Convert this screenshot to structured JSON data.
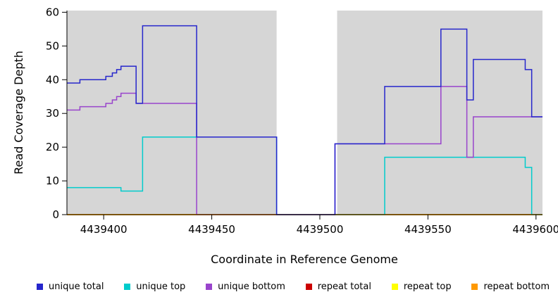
{
  "chart_data": {
    "type": "line",
    "title": "",
    "xlabel": "Coordinate in Reference Genome",
    "ylabel": "Read Coverage Depth",
    "xlim": [
      4439383,
      4439603
    ],
    "ylim": [
      0,
      60.5
    ],
    "x_ticks": [
      4439400,
      4439450,
      4439500,
      4439550,
      4439600
    ],
    "y_ticks": [
      0,
      10,
      20,
      30,
      40,
      50,
      60
    ],
    "plot_bg": "#d6d6d6",
    "gap_region": {
      "x0": 4439480,
      "x1": 4439508,
      "color": "#ffffff"
    },
    "step": true,
    "legend_position": "bottom",
    "grid": false,
    "series": [
      {
        "name": "unique total",
        "color": "#2626cc",
        "points": [
          [
            4439383,
            39
          ],
          [
            4439389,
            40
          ],
          [
            4439401,
            41
          ],
          [
            4439404,
            42
          ],
          [
            4439406,
            43
          ],
          [
            4439408,
            44
          ],
          [
            4439415,
            33
          ],
          [
            4439418,
            56
          ],
          [
            4439443,
            23
          ],
          [
            4439480,
            0
          ],
          [
            4439507,
            21
          ],
          [
            4439530,
            38
          ],
          [
            4439556,
            55
          ],
          [
            4439568,
            34
          ],
          [
            4439571,
            46
          ],
          [
            4439595,
            43
          ],
          [
            4439598,
            29
          ]
        ]
      },
      {
        "name": "unique top",
        "color": "#00cccc",
        "points": [
          [
            4439383,
            8
          ],
          [
            4439408,
            7
          ],
          [
            4439418,
            23
          ],
          [
            4439480,
            0
          ],
          [
            4439530,
            17
          ],
          [
            4439595,
            14
          ],
          [
            4439598,
            0
          ]
        ]
      },
      {
        "name": "unique bottom",
        "color": "#9944cc",
        "points": [
          [
            4439383,
            31
          ],
          [
            4439389,
            32
          ],
          [
            4439401,
            33
          ],
          [
            4439404,
            34
          ],
          [
            4439406,
            35
          ],
          [
            4439408,
            36
          ],
          [
            4439415,
            33
          ],
          [
            4439443,
            0
          ],
          [
            4439507,
            21
          ],
          [
            4439556,
            38
          ],
          [
            4439568,
            17
          ],
          [
            4439571,
            29
          ]
        ]
      },
      {
        "name": "repeat total",
        "color": "#cc0000",
        "points": [
          [
            4439383,
            0
          ]
        ]
      },
      {
        "name": "repeat top",
        "color": "#ffff00",
        "points": [
          [
            4439383,
            0
          ]
        ]
      },
      {
        "name": "repeat bottom",
        "color": "#ff9900",
        "points": [
          [
            4439383,
            0
          ]
        ]
      }
    ],
    "draw_order": [
      3,
      4,
      1,
      2,
      5,
      0
    ]
  }
}
